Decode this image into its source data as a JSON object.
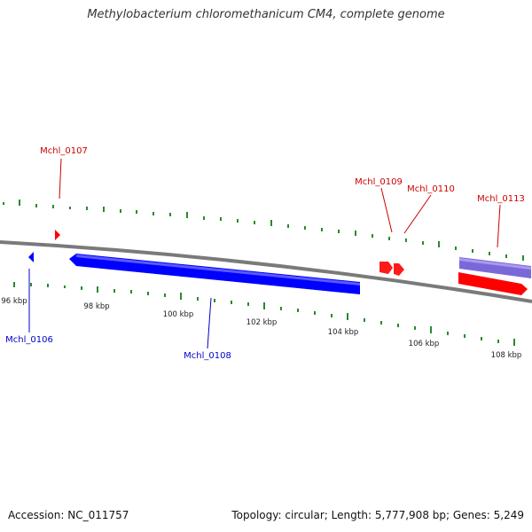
{
  "title": "Methylobacterium chloromethanicum CM4, complete genome",
  "footer": {
    "accession": "Accession: NC_011757",
    "stats": "Topology: circular; Length: 5,777,908 bp; Genes: 5,249"
  },
  "colors": {
    "forward_gene": "#ff0000",
    "reverse_gene": "#0000ff",
    "purple_gene": "#7b68d8",
    "backbone": "#7a7a7a",
    "gc_ticks": "#2a8a2a",
    "forward_label": "#cc0000",
    "reverse_label": "#0000cc"
  },
  "ticks": [
    "96 kbp",
    "98 kbp",
    "100 kbp",
    "102 kbp",
    "104 kbp",
    "106 kbp",
    "108 kbp"
  ],
  "genes": {
    "forward": [
      "Mchl_0107",
      "Mchl_0109",
      "Mchl_0110",
      "Mchl_0113"
    ],
    "reverse": [
      "Mchl_0106",
      "Mchl_0108"
    ]
  }
}
